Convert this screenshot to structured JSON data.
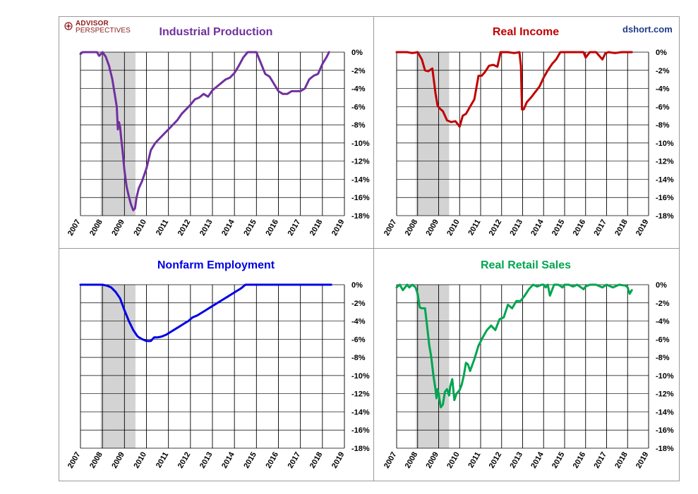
{
  "brand": {
    "logo_line1": "ADVISOR",
    "logo_line2": "PERSPECTIVES",
    "site": "dshort.com",
    "logo_color": "#8b1a1a",
    "site_color": "#1f3c88"
  },
  "chart_data": [
    {
      "type": "line",
      "title": "Industrial Production",
      "color": "#7030a0",
      "x_ticks": [
        "2007",
        "2008",
        "2009",
        "2010",
        "2011",
        "2012",
        "2013",
        "2014",
        "2015",
        "2016",
        "2017",
        "2018",
        "2019"
      ],
      "y_ticks": [
        "0%",
        "-2%",
        "-4%",
        "-6%",
        "-8%",
        "-10%",
        "-12%",
        "-14%",
        "-16%",
        "-18%"
      ],
      "ylim": [
        -18,
        0
      ],
      "xlim": [
        2007,
        2019
      ],
      "recession": [
        2007.92,
        2009.5
      ],
      "x": [
        2007.0,
        2007.1,
        2007.5,
        2007.75,
        2007.85,
        2008.0,
        2008.15,
        2008.3,
        2008.45,
        2008.55,
        2008.65,
        2008.7,
        2008.75,
        2008.8,
        2008.85,
        2008.9,
        2009.0,
        2009.1,
        2009.2,
        2009.3,
        2009.4,
        2009.48,
        2009.55,
        2009.65,
        2009.8,
        2010.0,
        2010.2,
        2010.4,
        2010.6,
        2010.8,
        2011.0,
        2011.2,
        2011.4,
        2011.6,
        2011.8,
        2012.0,
        2012.2,
        2012.4,
        2012.6,
        2012.8,
        2013.0,
        2013.2,
        2013.4,
        2013.6,
        2013.8,
        2014.0,
        2014.2,
        2014.4,
        2014.6,
        2014.8,
        2015.0,
        2015.2,
        2015.4,
        2015.6,
        2015.8,
        2016.0,
        2016.2,
        2016.4,
        2016.6,
        2016.8,
        2017.0,
        2017.2,
        2017.4,
        2017.6,
        2017.8,
        2018.0,
        2018.2,
        2018.3
      ],
      "values": [
        -0.2,
        0,
        0,
        0,
        -0.4,
        0,
        -0.5,
        -1.5,
        -3.0,
        -4.5,
        -6.0,
        -8.5,
        -7.7,
        -8.2,
        -9.5,
        -10.5,
        -13.0,
        -14.8,
        -15.9,
        -16.8,
        -17.4,
        -17.2,
        -16.0,
        -15.0,
        -14.2,
        -12.8,
        -10.8,
        -10.0,
        -9.5,
        -9.0,
        -8.5,
        -8.0,
        -7.5,
        -6.8,
        -6.3,
        -5.8,
        -5.2,
        -5.0,
        -4.6,
        -4.9,
        -4.2,
        -3.8,
        -3.4,
        -3.0,
        -2.8,
        -2.3,
        -1.5,
        -0.6,
        0,
        0,
        0,
        -1.2,
        -2.4,
        -2.7,
        -3.5,
        -4.3,
        -4.6,
        -4.6,
        -4.3,
        -4.3,
        -4.3,
        -4.0,
        -3.0,
        -2.6,
        -2.4,
        -1.3,
        -0.5,
        0
      ]
    },
    {
      "type": "line",
      "title": "Real Income",
      "color": "#c00000",
      "x_ticks": [
        "2007",
        "2008",
        "2009",
        "2010",
        "2011",
        "2012",
        "2013",
        "2014",
        "2015",
        "2016",
        "2017",
        "2018",
        "2019"
      ],
      "y_ticks": [
        "0%",
        "-2%",
        "-4%",
        "-6%",
        "-8%",
        "-10%",
        "-12%",
        "-14%",
        "-16%",
        "-18%"
      ],
      "ylim": [
        -18,
        0
      ],
      "xlim": [
        2007,
        2019
      ],
      "recession": [
        2007.92,
        2009.5
      ],
      "x": [
        2007.0,
        2007.5,
        2007.75,
        2008.0,
        2008.2,
        2008.35,
        2008.5,
        2008.7,
        2008.85,
        2008.95,
        2009.05,
        2009.2,
        2009.4,
        2009.6,
        2009.8,
        2010.0,
        2010.15,
        2010.3,
        2010.5,
        2010.7,
        2010.9,
        2011.05,
        2011.2,
        2011.4,
        2011.6,
        2011.8,
        2011.95,
        2012.0,
        2012.3,
        2012.6,
        2012.85,
        2012.92,
        2012.97,
        2013.05,
        2013.2,
        2013.4,
        2013.6,
        2013.8,
        2014.0,
        2014.2,
        2014.4,
        2014.6,
        2014.8,
        2015.0,
        2015.3,
        2015.6,
        2015.9,
        2016.0,
        2016.2,
        2016.5,
        2016.8,
        2016.95,
        2017.1,
        2017.4,
        2017.7,
        2018.0,
        2018.2
      ],
      "values": [
        0,
        0,
        -0.1,
        0,
        -0.8,
        -2.0,
        -2.1,
        -1.8,
        -4.5,
        -5.9,
        -6.2,
        -6.5,
        -7.5,
        -7.7,
        -7.6,
        -8.2,
        -7.0,
        -6.8,
        -6.0,
        -5.2,
        -2.6,
        -2.6,
        -2.2,
        -1.5,
        -1.4,
        -1.6,
        0,
        0,
        0,
        -0.1,
        0,
        -1.5,
        -6.3,
        -6.3,
        -5.5,
        -5.0,
        -4.4,
        -3.8,
        -2.8,
        -2.0,
        -1.3,
        -0.8,
        0,
        0,
        0,
        0,
        0,
        -0.6,
        0,
        0,
        -0.8,
        -0.1,
        0,
        -0.1,
        0,
        0,
        0
      ]
    },
    {
      "type": "line",
      "title": "Nonfarm Employment",
      "color": "#0000e6",
      "x_ticks": [
        "2007",
        "2008",
        "2009",
        "2010",
        "2011",
        "2012",
        "2013",
        "2014",
        "2015",
        "2016",
        "2017",
        "2018",
        "2019"
      ],
      "y_ticks": [
        "0%",
        "-2%",
        "-4%",
        "-6%",
        "-8%",
        "-10%",
        "-12%",
        "-14%",
        "-16%",
        "-18%"
      ],
      "ylim": [
        -18,
        0
      ],
      "xlim": [
        2007,
        2019
      ],
      "recession": [
        2007.92,
        2009.5
      ],
      "x": [
        2007.0,
        2007.5,
        2008.0,
        2008.2,
        2008.4,
        2008.6,
        2008.8,
        2009.0,
        2009.2,
        2009.4,
        2009.6,
        2009.8,
        2010.0,
        2010.2,
        2010.35,
        2010.5,
        2010.7,
        2010.9,
        2011.1,
        2011.3,
        2011.5,
        2011.7,
        2011.9,
        2012.1,
        2012.3,
        2012.5,
        2012.7,
        2012.9,
        2013.1,
        2013.3,
        2013.5,
        2013.7,
        2013.9,
        2014.1,
        2014.3,
        2014.5,
        2014.7,
        2015.0,
        2016.0,
        2017.0,
        2018.0,
        2018.4
      ],
      "values": [
        0,
        0,
        0,
        -0.1,
        -0.3,
        -0.8,
        -1.5,
        -2.8,
        -4.0,
        -5.0,
        -5.7,
        -6.0,
        -6.2,
        -6.2,
        -5.8,
        -5.8,
        -5.7,
        -5.5,
        -5.2,
        -4.9,
        -4.6,
        -4.3,
        -4.0,
        -3.6,
        -3.4,
        -3.1,
        -2.8,
        -2.5,
        -2.2,
        -1.9,
        -1.6,
        -1.3,
        -1.0,
        -0.7,
        -0.4,
        0,
        0,
        0,
        0,
        0,
        0,
        0
      ]
    },
    {
      "type": "line",
      "title": "Real Retail Sales",
      "color": "#00a550",
      "x_ticks": [
        "2007",
        "2008",
        "2009",
        "2010",
        "2011",
        "2012",
        "2013",
        "2014",
        "2015",
        "2016",
        "2017",
        "2018",
        "2019"
      ],
      "y_ticks": [
        "0%",
        "-2%",
        "-4%",
        "-6%",
        "-8%",
        "-10%",
        "-12%",
        "-14%",
        "-16%",
        "-18%"
      ],
      "ylim": [
        -18,
        0
      ],
      "xlim": [
        2007,
        2019
      ],
      "recession": [
        2007.92,
        2009.5
      ],
      "x": [
        2007.0,
        2007.15,
        2007.3,
        2007.5,
        2007.6,
        2007.75,
        2007.9,
        2008.0,
        2008.1,
        2008.2,
        2008.35,
        2008.45,
        2008.55,
        2008.65,
        2008.75,
        2008.85,
        2008.9,
        2008.95,
        2009.0,
        2009.1,
        2009.2,
        2009.3,
        2009.4,
        2009.5,
        2009.55,
        2009.65,
        2009.75,
        2009.85,
        2010.0,
        2010.1,
        2010.2,
        2010.3,
        2010.4,
        2010.5,
        2010.7,
        2010.9,
        2011.1,
        2011.3,
        2011.5,
        2011.7,
        2011.9,
        2012.1,
        2012.3,
        2012.5,
        2012.7,
        2012.9,
        2013.1,
        2013.3,
        2013.5,
        2013.7,
        2013.9,
        2014.0,
        2014.1,
        2014.2,
        2014.3,
        2014.5,
        2014.7,
        2014.9,
        2015.0,
        2015.2,
        2015.4,
        2015.6,
        2015.9,
        2016.0,
        2016.2,
        2016.5,
        2016.8,
        2017.0,
        2017.3,
        2017.6,
        2017.9,
        2018.0,
        2018.1,
        2018.2
      ],
      "values": [
        -0.3,
        0,
        -0.6,
        0,
        -0.3,
        0,
        -0.3,
        -1.0,
        -2.5,
        -2.6,
        -2.6,
        -4.5,
        -6.6,
        -8.0,
        -10.0,
        -11.5,
        -12.5,
        -11.5,
        -12.0,
        -13.5,
        -13.2,
        -11.8,
        -11.5,
        -12.2,
        -11.2,
        -10.4,
        -12.7,
        -12.0,
        -11.6,
        -11.0,
        -10.0,
        -8.6,
        -8.8,
        -9.5,
        -8.2,
        -6.7,
        -5.8,
        -5.0,
        -4.5,
        -5.0,
        -3.8,
        -3.6,
        -2.2,
        -2.6,
        -1.8,
        -1.8,
        -1.2,
        -0.5,
        0,
        -0.2,
        0,
        0,
        -0.3,
        0,
        -1.2,
        0,
        0,
        -0.3,
        0,
        0,
        -0.2,
        0,
        -0.5,
        -0.2,
        0,
        0,
        -0.3,
        0,
        -0.3,
        0,
        -0.1,
        -0.3,
        -1.0,
        -0.6
      ]
    }
  ]
}
